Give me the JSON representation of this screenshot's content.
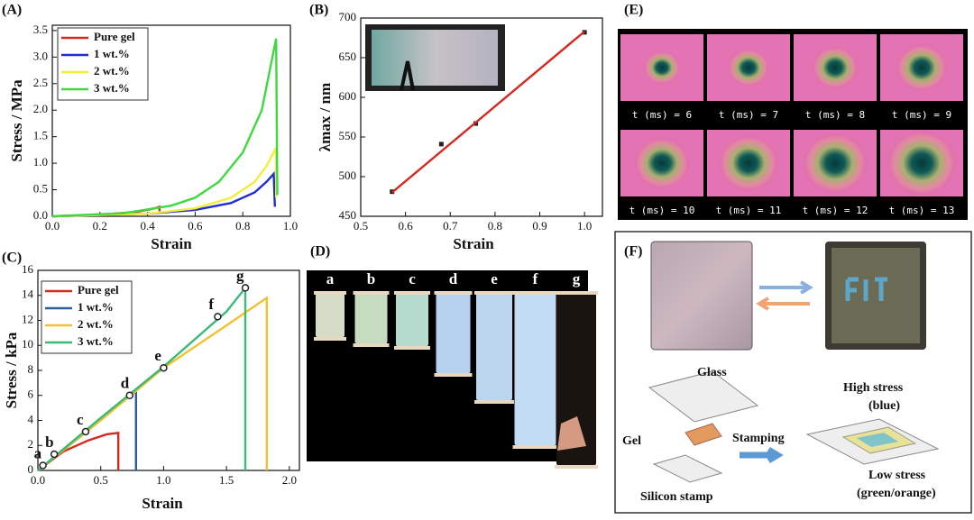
{
  "chart_data": [
    {
      "type": "line",
      "panel_label": "(A)",
      "x_label": "Strain",
      "y_label": "Stress / MPa",
      "xlim": [
        0,
        1.0
      ],
      "ylim": [
        0,
        3.6
      ],
      "xticks": [
        {
          "value": 0,
          "label": "0.0"
        },
        0.2,
        0.4,
        0.6,
        0.8,
        {
          "value": 1,
          "label": "1.0"
        }
      ],
      "yticks": [
        {
          "value": 0,
          "label": "0.0"
        },
        0.5,
        {
          "value": 1,
          "label": "1.0"
        },
        1.5,
        {
          "value": 2,
          "label": "2.0"
        },
        2.5,
        {
          "value": 3,
          "label": "3.0"
        },
        3.5
      ],
      "legend": "upper left",
      "series": [
        {
          "name": "Pure gel",
          "color": "#d42a20",
          "x": [
            0,
            0.2,
            0.35,
            0.43,
            0.45,
            0.45
          ],
          "values": [
            0,
            0.03,
            0.08,
            0.15,
            0.18,
            0.05
          ]
        },
        {
          "name": "1 wt.%",
          "color": "#1f2ed0",
          "x": [
            0,
            0.4,
            0.6,
            0.75,
            0.85,
            0.9,
            0.93,
            0.935
          ],
          "values": [
            0,
            0.05,
            0.12,
            0.25,
            0.45,
            0.65,
            0.8,
            0.18
          ]
        },
        {
          "name": "2 wt.%",
          "color": "#f2ef3a",
          "x": [
            0,
            0.4,
            0.6,
            0.75,
            0.85,
            0.9,
            0.94,
            0.94
          ],
          "values": [
            0,
            0.05,
            0.15,
            0.35,
            0.65,
            0.95,
            1.3,
            0.35
          ]
        },
        {
          "name": "3 wt.%",
          "color": "#3fd83f",
          "x": [
            0,
            0.3,
            0.5,
            0.6,
            0.7,
            0.8,
            0.88,
            0.94,
            0.945
          ],
          "values": [
            0,
            0.06,
            0.2,
            0.35,
            0.65,
            1.2,
            2.0,
            3.35,
            0.4
          ]
        }
      ]
    },
    {
      "type": "scatter",
      "panel_label": "(B)",
      "x_label": "Strain",
      "y_label": "λmax / nm",
      "xlim": [
        0.5,
        1.04
      ],
      "ylim": [
        450,
        700
      ],
      "xticks": [
        0.5,
        0.6,
        0.7,
        0.8,
        0.9,
        {
          "value": 1,
          "label": "1.0"
        }
      ],
      "yticks": [
        450,
        500,
        550,
        600,
        650,
        700
      ],
      "series": [
        {
          "color": "#222222",
          "style": "markers",
          "x": [
            0.57,
            0.68,
            0.757,
            1.0
          ],
          "values": [
            481,
            541,
            567,
            682
          ]
        },
        {
          "color": "#d42a20",
          "style": "line",
          "x": [
            0.57,
            1.0
          ],
          "values": [
            480,
            683
          ]
        }
      ]
    },
    {
      "type": "line",
      "panel_label": "(C)",
      "x_label": "Strain",
      "y_label": "Stress / kPa",
      "xlim": [
        0,
        2.08
      ],
      "ylim": [
        0,
        16
      ],
      "xticks": [
        {
          "value": 0,
          "label": "0.0"
        },
        0.5,
        {
          "value": 1,
          "label": "1.0"
        },
        1.5,
        {
          "value": 2,
          "label": "2.0"
        }
      ],
      "yticks": [
        0,
        2,
        4,
        6,
        8,
        10,
        12,
        14,
        16
      ],
      "legend": "upper left",
      "series": [
        {
          "name": "Pure gel",
          "color": "#d42a20",
          "x": [
            0,
            0.2,
            0.4,
            0.55,
            0.64,
            0.64
          ],
          "values": [
            0,
            1.5,
            2.4,
            2.9,
            3.0,
            0
          ]
        },
        {
          "name": "1 wt.%",
          "color": "#2d5d9c",
          "x": [
            0,
            0.4,
            0.7,
            0.78,
            0.78
          ],
          "values": [
            0,
            3.2,
            5.8,
            6.3,
            0
          ]
        },
        {
          "name": "2 wt.%",
          "color": "#f0c230",
          "x": [
            0,
            0.5,
            1.0,
            1.5,
            1.82,
            1.82
          ],
          "values": [
            0,
            4,
            8.2,
            11.6,
            13.8,
            0
          ]
        },
        {
          "name": "3 wt.%",
          "color": "#3cb878",
          "x": [
            0,
            0.5,
            1.0,
            1.5,
            1.65,
            1.65
          ],
          "values": [
            0,
            4.2,
            8.3,
            12.7,
            14.6,
            0
          ]
        }
      ],
      "annotations": [
        {
          "label": "a",
          "x": 0.04,
          "y": 0.4
        },
        {
          "label": "b",
          "x": 0.13,
          "y": 1.3
        },
        {
          "label": "c",
          "x": 0.38,
          "y": 3.1
        },
        {
          "label": "d",
          "x": 0.73,
          "y": 6.0
        },
        {
          "label": "e",
          "x": 1.0,
          "y": 8.2
        },
        {
          "label": "f",
          "x": 1.43,
          "y": 12.3
        },
        {
          "label": "g",
          "x": 1.65,
          "y": 14.6
        }
      ]
    }
  ],
  "panels": {
    "D": {
      "label": "(D)",
      "samples": [
        "a",
        "b",
        "c",
        "d",
        "e",
        "f",
        "g"
      ]
    },
    "E": {
      "label": "(E)",
      "frames": [
        "t (ms) = 6",
        "t (ms) = 7",
        "t (ms) = 8",
        "t (ms) = 9",
        "t (ms) = 10",
        "t (ms) = 11",
        "t (ms) = 12",
        "t (ms) = 13"
      ]
    },
    "F": {
      "label": "(F)",
      "glass": "Glass",
      "gel": "Gel",
      "stamp": "Silicon stamp",
      "stamping": "Stamping",
      "high": "High stress",
      "high_note": "(blue)",
      "low": "Low stress",
      "low_note": "(green/orange)"
    }
  }
}
